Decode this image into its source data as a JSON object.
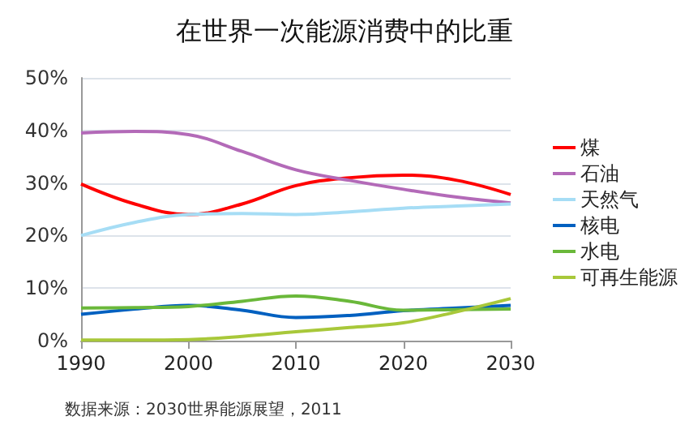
{
  "chart_data": {
    "type": "line",
    "title": "在世界一次能源消费中的比重",
    "x": [
      1990,
      1995,
      2000,
      2005,
      2010,
      2015,
      2020,
      2025,
      2030
    ],
    "xlim": [
      1990,
      2030
    ],
    "xticks": [
      1990,
      2000,
      2010,
      2020,
      2030
    ],
    "ylim": [
      0,
      50
    ],
    "yticks": [
      {
        "value": 0,
        "label": "0%"
      },
      {
        "value": 10,
        "label": "10%"
      },
      {
        "value": 20,
        "label": "20%"
      },
      {
        "value": 30,
        "label": "30%"
      },
      {
        "value": 40,
        "label": "40%"
      },
      {
        "value": 50,
        "label": "50%"
      }
    ],
    "grid": "y",
    "legend": "right",
    "marker": "none",
    "annotations": [
      "数据来源：2030世界能源展望，2011"
    ],
    "series": [
      {
        "name": "煤",
        "color": "#ff0000",
        "values": [
          29.8,
          26,
          24,
          26,
          29.5,
          31,
          31.5,
          30.5,
          27.8
        ]
      },
      {
        "name": "石油",
        "color": "#b36ab8",
        "values": [
          39.5,
          39.8,
          39.2,
          36,
          32.5,
          30.5,
          28.8,
          27.3,
          26.2
        ]
      },
      {
        "name": "天然气",
        "color": "#a6ddf5",
        "values": [
          20,
          22.5,
          24,
          24.2,
          24,
          24.5,
          25.2,
          25.6,
          26
        ]
      },
      {
        "name": "核电",
        "color": "#0060c0",
        "values": [
          5,
          6,
          6.7,
          5.8,
          4.4,
          4.8,
          5.7,
          6.2,
          6.7
        ]
      },
      {
        "name": "水电",
        "color": "#6ab83a",
        "values": [
          6.2,
          6.3,
          6.5,
          7.5,
          8.5,
          7.5,
          5.8,
          5.9,
          6
        ]
      },
      {
        "name": "可再生能源",
        "color": "#a8c83a",
        "values": [
          0.1,
          0.1,
          0.2,
          0.8,
          1.7,
          2.5,
          3.4,
          5.5,
          8
        ]
      }
    ]
  }
}
